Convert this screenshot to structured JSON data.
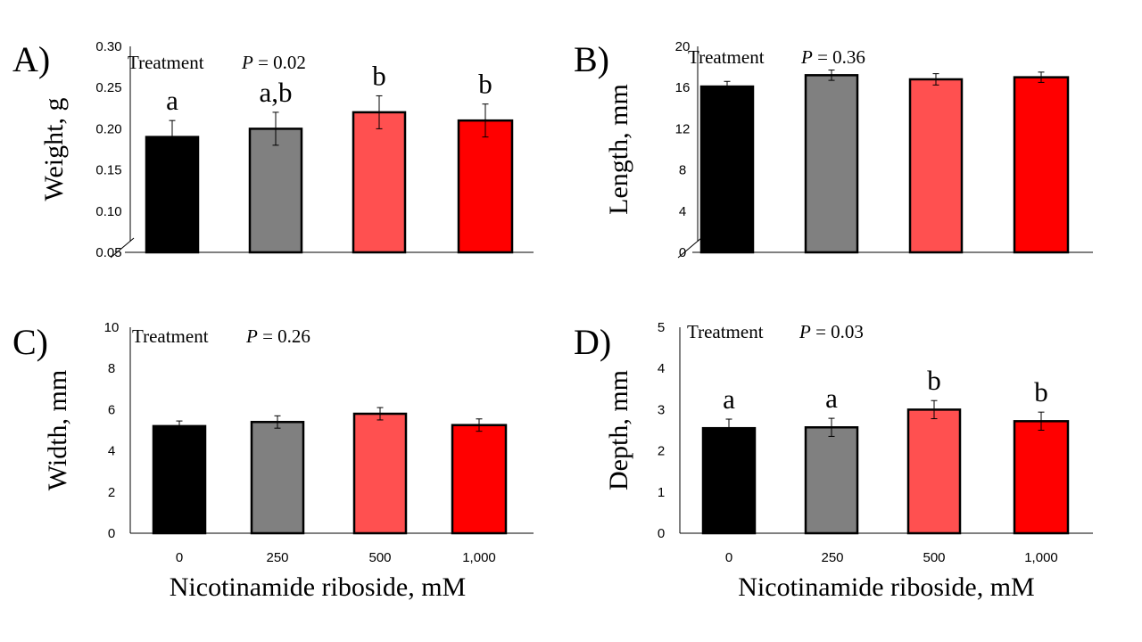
{
  "x_axis_label": "Nicotinamide riboside, mM",
  "chart_data": [
    {
      "type": "bar",
      "panel": "A)",
      "ylabel": "Weight, g",
      "annotation_prefix": "Treatment",
      "p_symbol": "P",
      "p_text": "= 0.02",
      "categories": [
        "0",
        "250",
        "500",
        "1,000"
      ],
      "values": [
        0.19,
        0.2,
        0.22,
        0.21
      ],
      "errors": [
        0.02,
        0.02,
        0.02,
        0.02
      ],
      "letters": [
        "a",
        "a,b",
        "b",
        "b"
      ],
      "colors": [
        "#000000",
        "#808080",
        "#ff5050",
        "#ff0000"
      ],
      "ylim": [
        0.05,
        0.3
      ],
      "yticks": [
        "0.05",
        "0.10",
        "0.15",
        "0.20",
        "0.25",
        "0.30"
      ],
      "axis_break": true,
      "show_xticks": false,
      "show_xlabel": false
    },
    {
      "type": "bar",
      "panel": "B)",
      "ylabel": "Length, mm",
      "annotation_prefix": "Treatment",
      "p_symbol": "P",
      "p_text": "= 0.36",
      "categories": [
        "0",
        "250",
        "500",
        "1,000"
      ],
      "values": [
        16.1,
        17.2,
        16.8,
        17.0
      ],
      "errors": [
        0.5,
        0.5,
        0.55,
        0.5
      ],
      "letters": [],
      "colors": [
        "#000000",
        "#808080",
        "#ff5050",
        "#ff0000"
      ],
      "ylim": [
        0,
        20
      ],
      "yticks": [
        "0",
        "4",
        "8",
        "12",
        "16",
        "20"
      ],
      "axis_break": true,
      "show_xticks": false,
      "show_xlabel": false
    },
    {
      "type": "bar",
      "panel": "C)",
      "ylabel": "Width, mm",
      "annotation_prefix": "Treatment",
      "p_symbol": "P",
      "p_text": "= 0.26",
      "categories": [
        "0",
        "250",
        "500",
        "1,000"
      ],
      "values": [
        5.2,
        5.4,
        5.8,
        5.25
      ],
      "errors": [
        0.25,
        0.3,
        0.3,
        0.3
      ],
      "letters": [],
      "colors": [
        "#000000",
        "#808080",
        "#ff5050",
        "#ff0000"
      ],
      "ylim": [
        0,
        10
      ],
      "yticks": [
        "0",
        "2",
        "4",
        "6",
        "8",
        "10"
      ],
      "axis_break": false,
      "show_xticks": true,
      "show_xlabel": true
    },
    {
      "type": "bar",
      "panel": "D)",
      "ylabel": "Depth, mm",
      "annotation_prefix": "Treatment",
      "p_symbol": "P",
      "p_text": "= 0.03",
      "categories": [
        "0",
        "250",
        "500",
        "1,000"
      ],
      "values": [
        2.55,
        2.57,
        3.0,
        2.72
      ],
      "errors": [
        0.22,
        0.22,
        0.22,
        0.22
      ],
      "letters": [
        "a",
        "a",
        "b",
        "b"
      ],
      "colors": [
        "#000000",
        "#808080",
        "#ff5050",
        "#ff0000"
      ],
      "ylim": [
        0,
        5
      ],
      "yticks": [
        "0",
        "1",
        "2",
        "3",
        "4",
        "5"
      ],
      "axis_break": false,
      "show_xticks": true,
      "show_xlabel": true
    }
  ]
}
